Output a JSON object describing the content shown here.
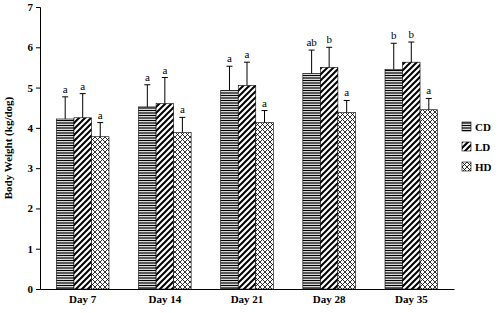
{
  "chart_data": {
    "type": "bar",
    "y_label": "Body Weight (kg/dog)",
    "categories": [
      "Day 7",
      "Day 14",
      "Day 21",
      "Day 28",
      "Day 35"
    ],
    "series": [
      {
        "name": "CD",
        "color": "#000000",
        "values": [
          4.22,
          4.52,
          4.93,
          5.35,
          5.45
        ],
        "errors": [
          0.55,
          0.55,
          0.6,
          0.58,
          0.65
        ],
        "annotations": [
          "a",
          "a",
          "a",
          "ab",
          "b"
        ]
      },
      {
        "name": "LD",
        "color": "#000000",
        "values": [
          4.25,
          4.6,
          5.05,
          5.5,
          5.63
        ],
        "errors": [
          0.6,
          0.65,
          0.58,
          0.5,
          0.5
        ],
        "annotations": [
          "a",
          "a",
          "a",
          "b",
          "b"
        ]
      },
      {
        "name": "HD",
        "color": "#000000",
        "values": [
          3.78,
          3.88,
          4.13,
          4.38,
          4.45
        ],
        "errors": [
          0.35,
          0.38,
          0.3,
          0.3,
          0.28
        ],
        "annotations": [
          "a",
          "a",
          "a",
          "a",
          "a"
        ]
      }
    ],
    "ylim": [
      0,
      7
    ],
    "yticks": [
      0,
      1,
      2,
      3,
      4,
      5,
      6,
      7
    ],
    "grid": false,
    "legend": "right"
  }
}
